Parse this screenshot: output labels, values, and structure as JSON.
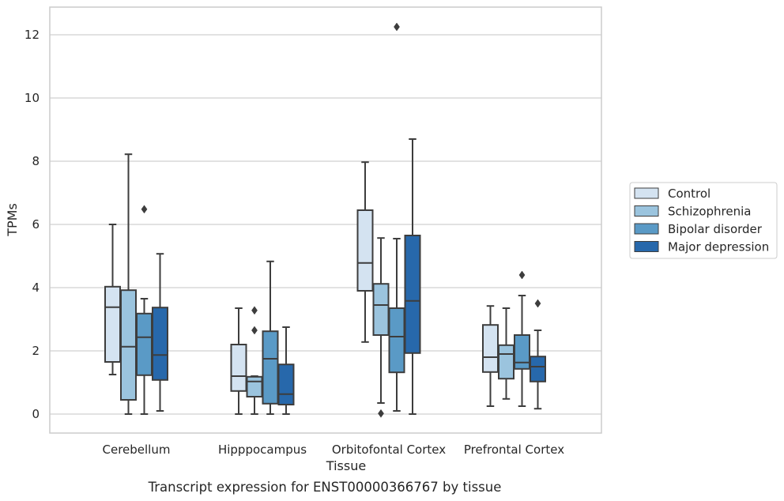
{
  "chart_data": {
    "type": "box",
    "caption": "Transcript expression for ENST00000366767 by tissue",
    "xlabel": "Tissue",
    "ylabel": "TPMs",
    "ylim": [
      -0.6,
      12.85
    ],
    "yticks": [
      "0",
      "2",
      "4",
      "6",
      "8",
      "10",
      "12"
    ],
    "grid": true,
    "legend_position": "right",
    "categories": [
      "Cerebellum",
      "Hipppocampus",
      "Orbitofontal Cortex",
      "Prefrontal Cortex"
    ],
    "series": [
      {
        "name": "Control",
        "color": "#d4e3f1",
        "boxes": [
          {
            "whislo": 1.25,
            "q1": 1.65,
            "med": 3.38,
            "q3": 4.03,
            "whishi": 6.0,
            "fliers": []
          },
          {
            "whislo": 0.0,
            "q1": 0.73,
            "med": 1.2,
            "q3": 2.2,
            "whishi": 3.35,
            "fliers": []
          },
          {
            "whislo": 2.28,
            "q1": 3.9,
            "med": 4.78,
            "q3": 6.45,
            "whishi": 7.97,
            "fliers": []
          },
          {
            "whislo": 0.25,
            "q1": 1.33,
            "med": 1.8,
            "q3": 2.82,
            "whishi": 3.42,
            "fliers": []
          }
        ]
      },
      {
        "name": "Schizophrenia",
        "color": "#9bc4de",
        "boxes": [
          {
            "whislo": 0.0,
            "q1": 0.45,
            "med": 2.13,
            "q3": 3.92,
            "whishi": 8.22,
            "fliers": []
          },
          {
            "whislo": 0.0,
            "q1": 0.55,
            "med": 1.03,
            "q3": 1.18,
            "whishi": 1.2,
            "fliers": [
              2.65,
              3.28
            ]
          },
          {
            "whislo": 0.35,
            "q1": 2.5,
            "med": 3.45,
            "q3": 4.12,
            "whishi": 5.57,
            "fliers": [
              0.02
            ]
          },
          {
            "whislo": 0.48,
            "q1": 1.12,
            "med": 1.9,
            "q3": 2.18,
            "whishi": 3.35,
            "fliers": []
          }
        ]
      },
      {
        "name": "Bipolar disorder",
        "color": "#5a9ac6",
        "boxes": [
          {
            "whislo": 0.0,
            "q1": 1.23,
            "med": 2.43,
            "q3": 3.18,
            "whishi": 3.65,
            "fliers": [
              6.48
            ]
          },
          {
            "whislo": 0.0,
            "q1": 0.33,
            "med": 1.75,
            "q3": 2.62,
            "whishi": 4.83,
            "fliers": []
          },
          {
            "whislo": 0.1,
            "q1": 1.32,
            "med": 2.45,
            "q3": 3.35,
            "whishi": 5.55,
            "fliers": [
              12.25
            ]
          },
          {
            "whislo": 0.25,
            "q1": 1.43,
            "med": 1.63,
            "q3": 2.5,
            "whishi": 3.75,
            "fliers": [
              4.4
            ]
          }
        ]
      },
      {
        "name": "Major depression",
        "color": "#2768ab",
        "boxes": [
          {
            "whislo": 0.1,
            "q1": 1.08,
            "med": 1.87,
            "q3": 3.37,
            "whishi": 5.07,
            "fliers": []
          },
          {
            "whislo": 0.0,
            "q1": 0.3,
            "med": 0.63,
            "q3": 1.57,
            "whishi": 2.75,
            "fliers": []
          },
          {
            "whislo": 0.0,
            "q1": 1.93,
            "med": 3.58,
            "q3": 5.65,
            "whishi": 8.7,
            "fliers": []
          },
          {
            "whislo": 0.17,
            "q1": 1.03,
            "med": 1.5,
            "q3": 1.82,
            "whishi": 2.65,
            "fliers": [
              3.5
            ]
          }
        ]
      }
    ]
  }
}
